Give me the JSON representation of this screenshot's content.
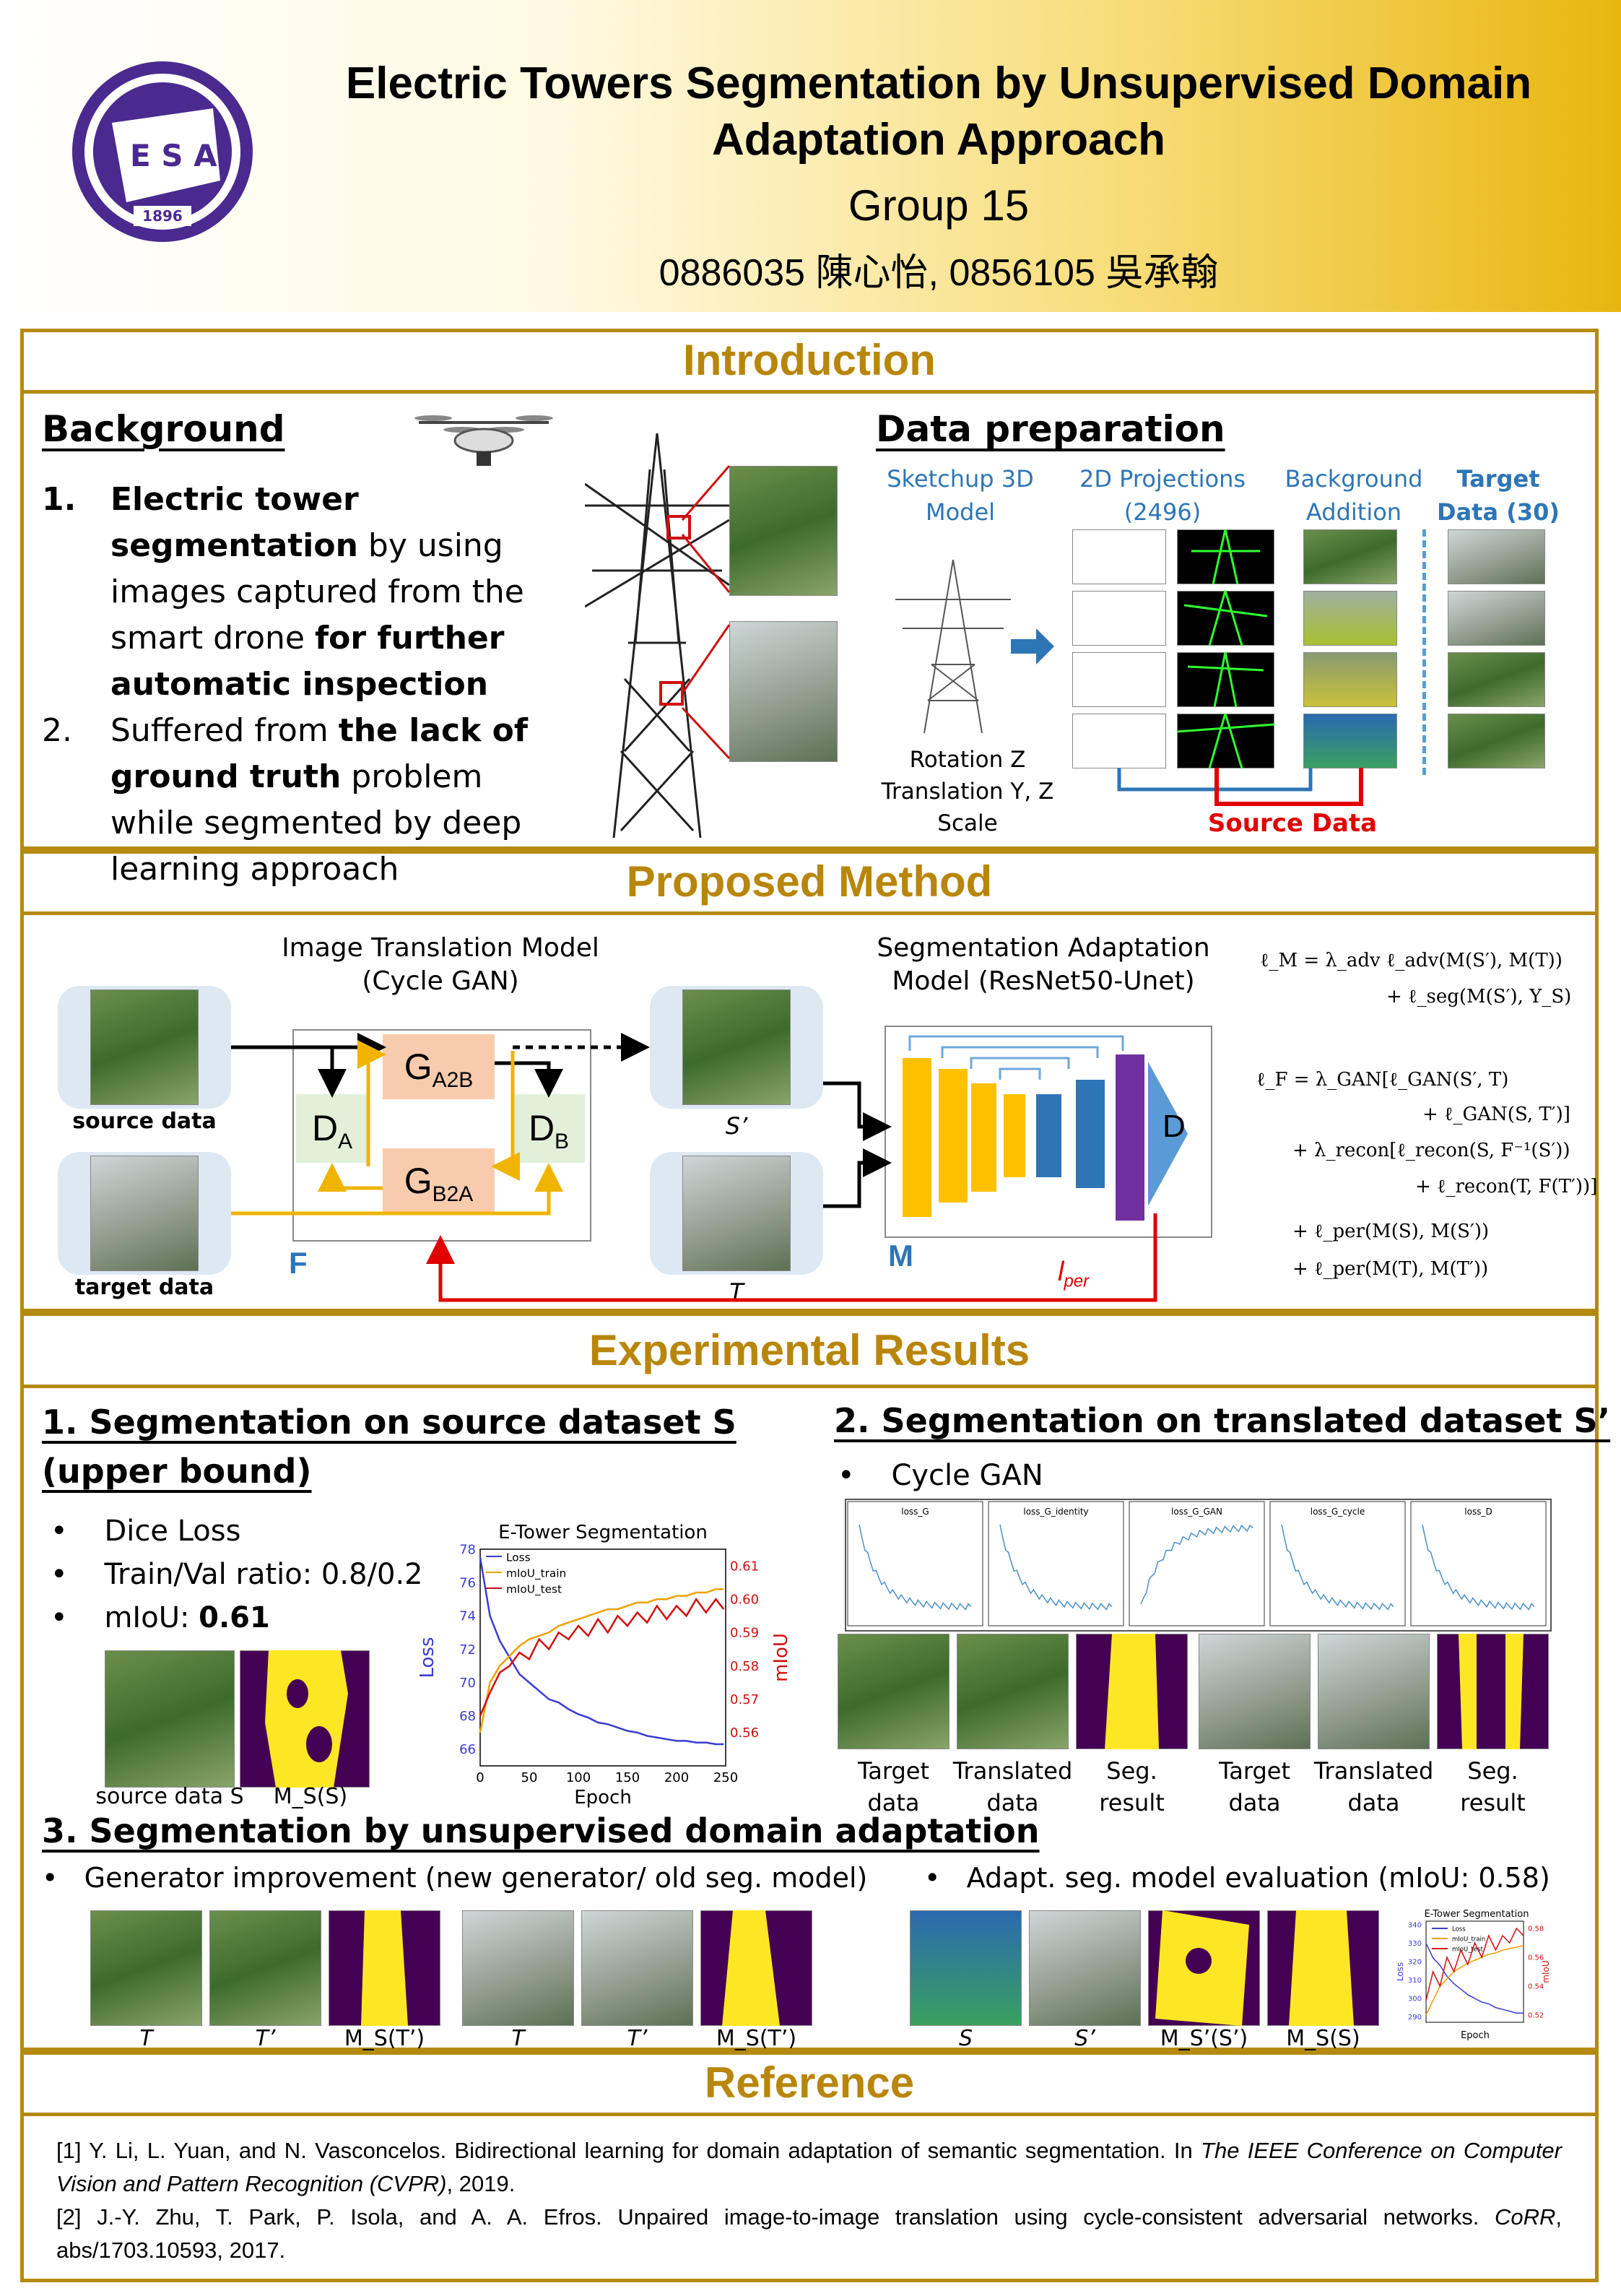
{
  "header": {
    "title_line1": "Electric Towers Segmentation by Unsupervised Domain",
    "title_line2": "Adaptation Approach",
    "group": "Group 15",
    "authors": "0886035 陳心怡, 0856105 吳承翰",
    "logo_year": "1896",
    "logo_letters": "E S A"
  },
  "introduction": {
    "section_title": "Introduction",
    "background": {
      "heading": "Background",
      "item1_num": "1.",
      "item1_bold_a": "Electric tower segmentation",
      "item1_text_a": " by using images captured from the smart drone ",
      "item1_bold_b": "for further automatic inspection",
      "item2_num": "2.",
      "item2_text_a": "Suffered from ",
      "item2_bold": "the lack of ground truth",
      "item2_text_b": " problem while segmented by deep learning approach"
    },
    "data_preparation": {
      "heading": "Data preparation",
      "sketchup": "Sketchup 3D Model",
      "projections": "2D Projections (2496)",
      "background_addition": "Background Addition",
      "target": "Target Data (30)",
      "transform_line1": "Rotation Z",
      "transform_line2": "Translation Y, Z",
      "transform_line3": "Scale",
      "source_label": "Source Data"
    }
  },
  "method": {
    "section_title": "Proposed Method",
    "image_translation": "Image Translation Model (Cycle GAN)",
    "seg_adaptation": "Segmentation Adaptation Model (ResNet50-Unet)",
    "source_data": "source data",
    "target_data": "target data",
    "s_prime": "S’",
    "t_label": "T",
    "F": "F",
    "M": "M",
    "D": "D",
    "G_A2B": "G",
    "G_A2B_sub": "A2B",
    "G_B2A": "G",
    "G_B2A_sub": "B2A",
    "D_A": "D",
    "D_A_sub": "A",
    "D_B": "D",
    "D_B_sub": "B",
    "l_per": "l",
    "l_per_sub": "per",
    "formula_M1": "ℓ_M = λ_adv ℓ_adv(M(S′), M(T))",
    "formula_M2": "+ ℓ_seg(M(S′), Y_S)",
    "formula_F1": "ℓ_F = λ_GAN[ℓ_GAN(S′, T)",
    "formula_F2": "+ ℓ_GAN(S, T′)]",
    "formula_F3": "+ λ_recon[ℓ_recon(S, F⁻¹(S′))",
    "formula_F4": "+ ℓ_recon(T, F(T′))]",
    "formula_F5": "+ ℓ_per(M(S), M(S′))",
    "formula_F6": "+ ℓ_per(M(T), M(T′))"
  },
  "results": {
    "section_title": "Experimental Results",
    "r1_heading_line1": "1. Segmentation on source dataset S",
    "r1_heading_line2": "(upper bound)",
    "r1_bullet1": "Dice Loss",
    "r1_bullet2": "Train/Val ratio: 0.8/0.2",
    "r1_bullet3_a": "mIoU: ",
    "r1_bullet3_b": "0.61",
    "r1_caption_source": "source data S",
    "r1_caption_ms": "M_S(S)",
    "r2_heading": "2. Segmentation on translated dataset S’",
    "r2_bullet": "Cycle GAN",
    "r2_panels": [
      "loss_G",
      "loss_G_identity",
      "loss_G_GAN",
      "loss_G_cycle",
      "loss_D"
    ],
    "r2_caption_target": "Target data",
    "r2_caption_translated": "Translated data",
    "r2_caption_seg": "Seg. result",
    "r3_heading": "3. Segmentation by unsupervised domain adaptation",
    "r3_bullet1": "Generator improvement (new generator/ old seg. model)",
    "r3_bullet2": "Adapt. seg. model evaluation (mIoU: 0.58)",
    "r3_captions_a": [
      "T",
      "T’",
      "M_S(T’)"
    ],
    "r3_captions_b": [
      "T",
      "T’",
      "M_S(T’)"
    ],
    "r3_captions_c": [
      "S",
      "S’",
      "M_S’(S’)",
      "M_S(S)"
    ]
  },
  "reference": {
    "section_title": "Reference",
    "ref1_a": "[1] Y. Li, L. Yuan, and N. Vasconcelos. Bidirectional learning for domain adaptation of semantic segmentation. In ",
    "ref1_italic": "The IEEE Conference on Computer Vision and Pattern Recognition (CVPR)",
    "ref1_b": ", 2019.",
    "ref2_a": "[2] J.-Y. Zhu, T. Park, P. Isola, and A. A. Efros. Unpaired image-to-image translation using cycle-consistent adversarial networks. ",
    "ref2_italic": "CoRR",
    "ref2_b": ", abs/1703.10593, 2017."
  },
  "chart_data": [
    {
      "type": "line",
      "title": "E-Tower Segmentation",
      "xlabel": "Epoch",
      "ylabel": "Loss",
      "y2label": "mIoU",
      "xlim": [
        0,
        250
      ],
      "ylim": [
        65,
        78
      ],
      "y2lim": [
        0.55,
        0.615
      ],
      "xticks": [
        0,
        50,
        100,
        150,
        200,
        250
      ],
      "yticks": [
        66,
        68,
        70,
        72,
        74,
        76,
        78
      ],
      "y2ticks": [
        0.56,
        0.57,
        0.58,
        0.59,
        0.6,
        0.61
      ],
      "legend": "top-left",
      "series": [
        {
          "name": "Loss",
          "axis": "left",
          "color": "#3b3bd6",
          "x": [
            0,
            10,
            20,
            30,
            40,
            50,
            60,
            70,
            80,
            90,
            100,
            110,
            120,
            130,
            140,
            150,
            160,
            170,
            180,
            190,
            200,
            210,
            220,
            230,
            240,
            248
          ],
          "values": [
            77.5,
            74.0,
            72.5,
            71.5,
            70.5,
            70.0,
            69.5,
            69.0,
            68.8,
            68.4,
            68.1,
            67.9,
            67.6,
            67.5,
            67.3,
            67.1,
            67.0,
            66.8,
            66.7,
            66.6,
            66.5,
            66.5,
            66.4,
            66.4,
            66.3,
            66.3
          ]
        },
        {
          "name": "mIoU_train",
          "axis": "right",
          "color": "#f0a000",
          "x": [
            0,
            10,
            20,
            30,
            40,
            50,
            60,
            70,
            80,
            90,
            100,
            110,
            120,
            130,
            140,
            150,
            160,
            170,
            180,
            190,
            200,
            210,
            220,
            230,
            240,
            248
          ],
          "values": [
            0.56,
            0.575,
            0.58,
            0.583,
            0.586,
            0.588,
            0.589,
            0.59,
            0.592,
            0.593,
            0.594,
            0.595,
            0.596,
            0.597,
            0.597,
            0.598,
            0.599,
            0.599,
            0.6,
            0.6,
            0.601,
            0.601,
            0.602,
            0.602,
            0.603,
            0.603
          ]
        },
        {
          "name": "mIoU_test",
          "axis": "right",
          "color": "#d01010",
          "x": [
            0,
            10,
            20,
            30,
            40,
            50,
            60,
            70,
            80,
            90,
            100,
            110,
            120,
            130,
            140,
            150,
            160,
            170,
            180,
            190,
            200,
            210,
            220,
            230,
            240,
            248
          ],
          "values": [
            0.565,
            0.572,
            0.578,
            0.58,
            0.584,
            0.582,
            0.588,
            0.585,
            0.59,
            0.588,
            0.592,
            0.589,
            0.594,
            0.59,
            0.595,
            0.592,
            0.596,
            0.593,
            0.598,
            0.594,
            0.598,
            0.595,
            0.6,
            0.596,
            0.6,
            0.597
          ]
        }
      ]
    },
    {
      "type": "line",
      "title": "E-Tower Segmentation",
      "xlabel": "Epoch",
      "ylabel": "Loss",
      "y2label": "mIoU",
      "ylim": [
        287,
        342
      ],
      "y2lim": [
        0.515,
        0.585
      ],
      "yticks": [
        290,
        300,
        310,
        320,
        330,
        340
      ],
      "y2ticks": [
        0.52,
        0.54,
        0.56,
        0.58
      ],
      "series": [
        {
          "name": "Loss",
          "axis": "left",
          "color": "#3b3bd6",
          "x": [
            0,
            1,
            2,
            3,
            4,
            5,
            6,
            7,
            8,
            9,
            10,
            11,
            12,
            13,
            14
          ],
          "values": [
            330,
            322,
            318,
            312,
            308,
            305,
            302,
            300,
            298,
            297,
            295,
            294,
            293,
            292,
            292
          ]
        },
        {
          "name": "mIoU_train",
          "axis": "right",
          "color": "#f0a000",
          "x": [
            0,
            1,
            2,
            3,
            4,
            5,
            6,
            7,
            8,
            9,
            10,
            11,
            12,
            13,
            14
          ],
          "values": [
            0.52,
            0.53,
            0.54,
            0.545,
            0.55,
            0.553,
            0.556,
            0.558,
            0.56,
            0.562,
            0.563,
            0.565,
            0.566,
            0.567,
            0.568
          ]
        },
        {
          "name": "mIoU_test",
          "axis": "right",
          "color": "#d01010",
          "x": [
            0,
            1,
            2,
            3,
            4,
            5,
            6,
            7,
            8,
            9,
            10,
            11,
            12,
            13,
            14
          ],
          "values": [
            0.53,
            0.55,
            0.54,
            0.56,
            0.55,
            0.565,
            0.555,
            0.57,
            0.56,
            0.575,
            0.565,
            0.575,
            0.57,
            0.58,
            0.575
          ]
        }
      ]
    }
  ]
}
